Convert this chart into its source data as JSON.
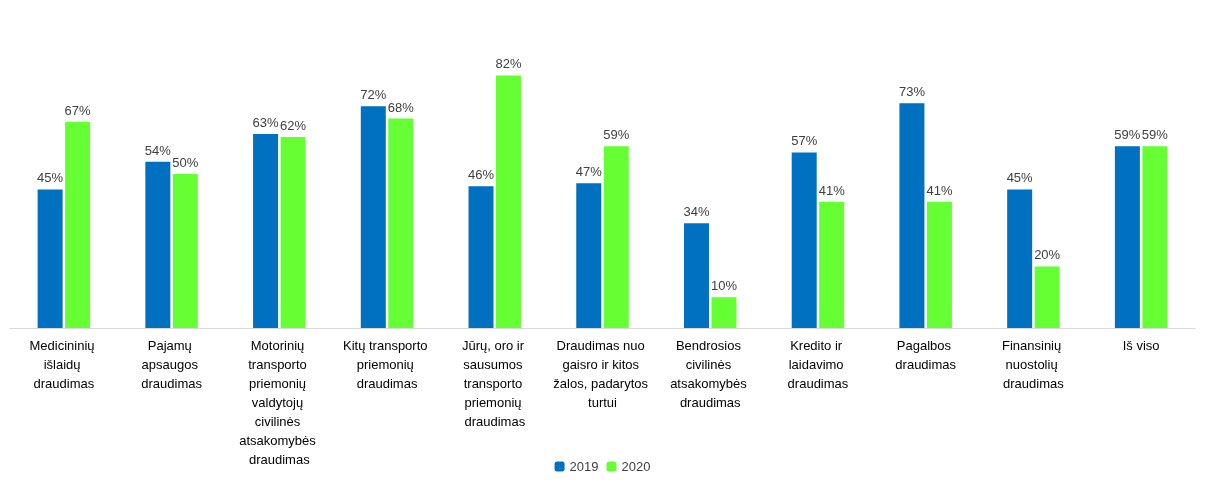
{
  "chart_data": {
    "type": "bar",
    "categories": [
      "Medicininių išlaidų draudimas",
      "Pajamų apsaugos draudimas",
      "Motorinių transporto priemonių valdytojų civilinės atsakomybės draudimas",
      "Kitų transporto priemonių draudimas",
      "Jūrų, oro ir sausumos transporto priemonių draudimas",
      "Draudimas nuo gaisro ir kitos žalos, padarytos turtui",
      "Bendrosios civilinės atsakomybės draudimas",
      "Kredito ir laidavimo draudimas",
      "Pagalbos draudimas",
      "Finansinių nuostolių draudimas",
      "Iš viso"
    ],
    "series": [
      {
        "name": "2019",
        "color": "#0070c0",
        "values": [
          45,
          54,
          63,
          72,
          46,
          47,
          34,
          57,
          73,
          45,
          59
        ],
        "value_labels": [
          "45%",
          "54%",
          "63%",
          "72%",
          "46%",
          "47%",
          "34%",
          "57%",
          "73%",
          "45%",
          "59%"
        ]
      },
      {
        "name": "2020",
        "color": "#66ff33",
        "values": [
          67,
          50,
          62,
          68,
          82,
          59,
          10,
          41,
          41,
          20,
          59
        ],
        "value_labels": [
          "67%",
          "50%",
          "62%",
          "68%",
          "82%",
          "59%",
          "10%",
          "41%",
          "41%",
          "20%",
          "59%"
        ]
      }
    ],
    "legend": "bottom"
  }
}
